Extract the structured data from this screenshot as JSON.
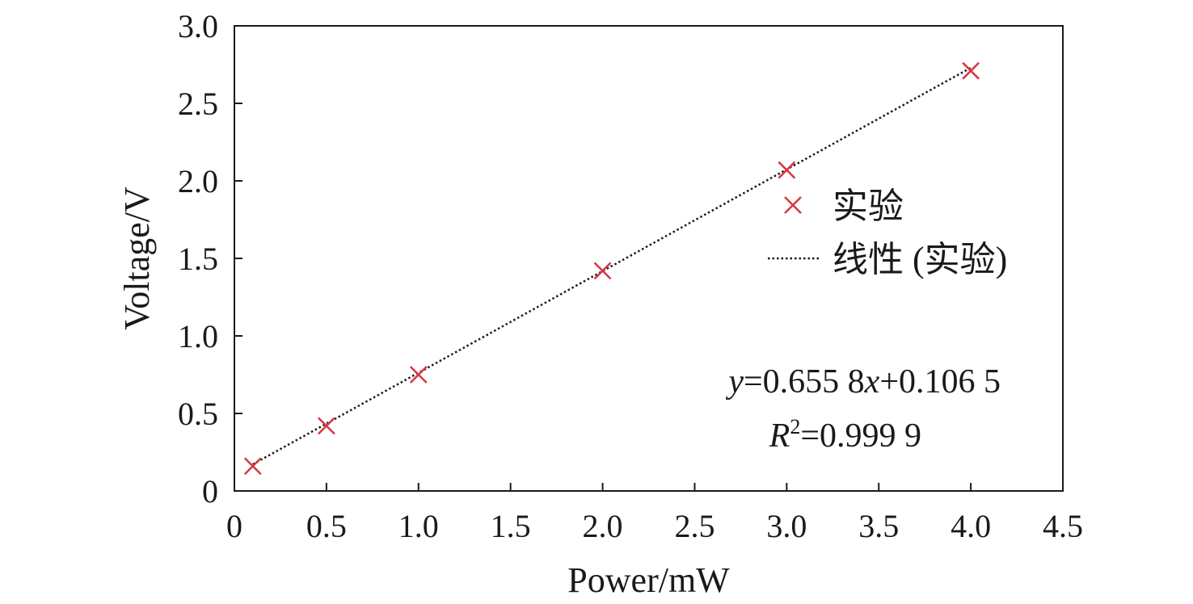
{
  "chart_data": {
    "type": "scatter",
    "xlabel": "Power/mW",
    "ylabel": "Voltage/V",
    "xlim": [
      0,
      4.5
    ],
    "ylim": [
      0,
      3.0
    ],
    "x_ticks": [
      0,
      0.5,
      1.0,
      1.5,
      2.0,
      2.5,
      3.0,
      3.5,
      4.0,
      4.5
    ],
    "x_tick_labels": [
      "0",
      "0.5",
      "1.0",
      "1.5",
      "2.0",
      "2.5",
      "3.0",
      "3.5",
      "4.0",
      "4.5"
    ],
    "y_ticks": [
      0,
      0.5,
      1.0,
      1.5,
      2.0,
      2.5,
      3.0
    ],
    "y_tick_labels": [
      "0",
      "0.5",
      "1.0",
      "1.5",
      "2.0",
      "2.5",
      "3.0"
    ],
    "grid": false,
    "legend_position": "right",
    "series": [
      {
        "name": "实验",
        "marker": "x",
        "color": "#d6383f",
        "x": [
          0.1,
          0.5,
          1.0,
          2.0,
          3.0,
          4.0
        ],
        "y": [
          0.16,
          0.42,
          0.75,
          1.42,
          2.07,
          2.71
        ]
      },
      {
        "name": "线性 (实验)",
        "style": "dotted-line",
        "color": "#1a1a1a",
        "fit": {
          "slope": 0.6558,
          "intercept": 0.1065
        },
        "x_range": [
          0.1,
          4.0
        ]
      }
    ],
    "annotations": {
      "equation_y": "y",
      "equation_rest": "=0.655 8",
      "equation_x": "x",
      "equation_tail": "+0.106 5",
      "r2_letter": "R",
      "r2_sup": "2",
      "r2_value": "=0.999 9"
    }
  }
}
